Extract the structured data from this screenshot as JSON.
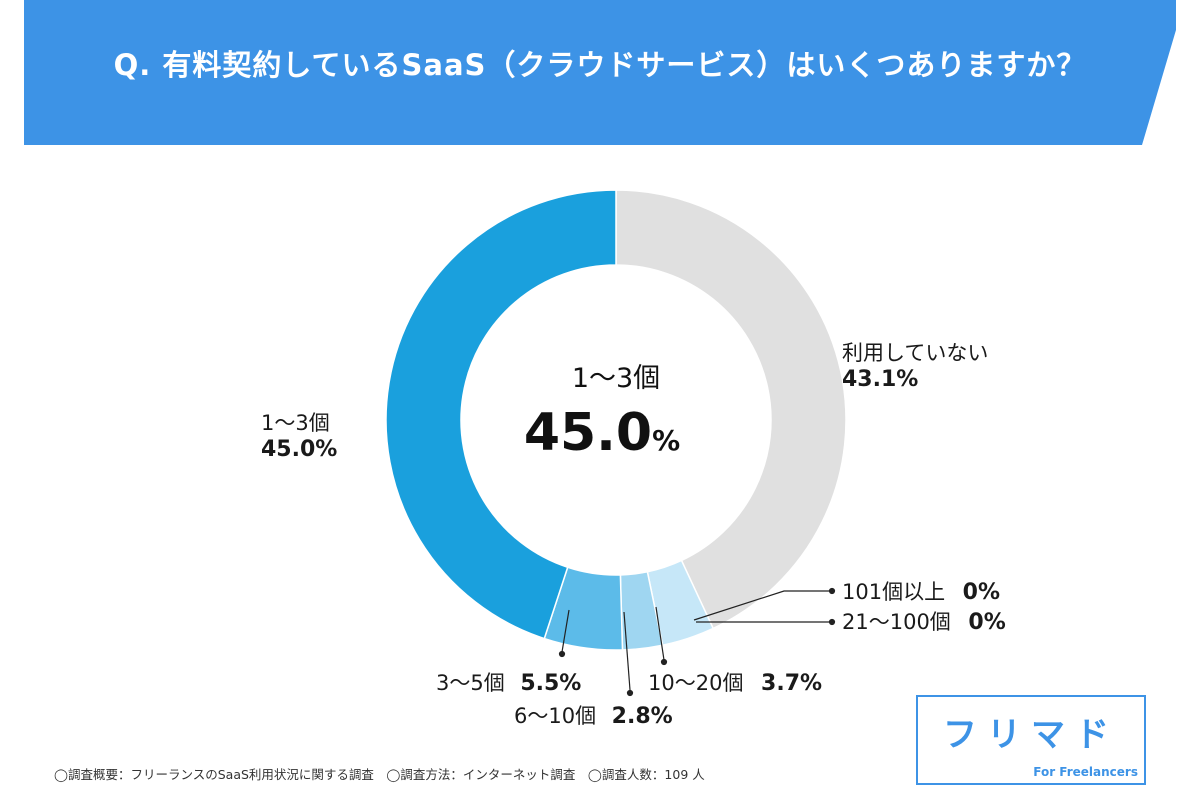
{
  "title": "Q. 有料契約しているSaaS（クラウドサービス）はいくつありますか？",
  "center": {
    "name": "1〜3個",
    "value": "45.0",
    "unit": "%"
  },
  "labels": {
    "l13": {
      "name": "1〜3個",
      "pct": "45.0%"
    },
    "lnone": {
      "name": "利用していない",
      "pct": "43.1%"
    },
    "l101": {
      "name": "101個以上",
      "pct": "0%"
    },
    "l21": {
      "name": "21〜100個",
      "pct": "0%"
    },
    "l1020": {
      "name": "10〜20個",
      "pct": "3.7%"
    },
    "l610": {
      "name": "6〜10個",
      "pct": "2.8%"
    },
    "l35": {
      "name": "3〜5個",
      "pct": "5.5%"
    }
  },
  "footer": "◯調査概要：フリーランスのSaaS利用状況に関する調査　◯調査方法：インターネット調査　◯調査人数：109 人",
  "logo": {
    "text": "フリマド",
    "sub": "For Freelancers"
  },
  "colors": {
    "header": "#3d93e6",
    "dark_blue": "#1aa0dd",
    "gray": "#e0e0e0"
  },
  "chart_data": {
    "type": "pie",
    "donut": true,
    "categories": [
      "利用していない",
      "101個以上",
      "21〜100個",
      "10〜20個",
      "6〜10個",
      "3〜5個",
      "1〜3個"
    ],
    "values": [
      43.1,
      0,
      0,
      3.7,
      2.8,
      5.5,
      45.0
    ],
    "colors": [
      "#e0e0e0",
      "#cfe9f8",
      "#cfe9f8",
      "#c6e7f8",
      "#9fd6f1",
      "#5cbbe9",
      "#1aa0dd"
    ],
    "unit": "%"
  }
}
